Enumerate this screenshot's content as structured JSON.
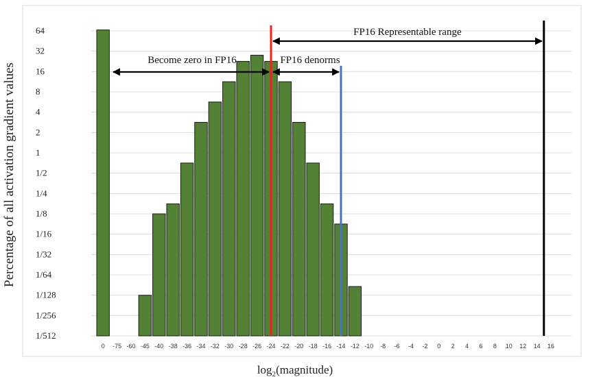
{
  "chart_data": {
    "type": "bar",
    "xlabel_base": "log",
    "xlabel_sub": "2",
    "xlabel_rest": "(magnitude)",
    "ylabel": "Percentage of all activation gradient values",
    "y_scale": "log2",
    "y_ticks": [
      "64",
      "32",
      "16",
      "8",
      "4",
      "2",
      "1",
      "1/2",
      "1/4",
      "1/8",
      "1/16",
      "1/32",
      "1/64",
      "1/128",
      "1/256",
      "1/512"
    ],
    "grid": true,
    "categories": [
      "0",
      "-75",
      "-60",
      "-45",
      "-40",
      "-38",
      "-36",
      "-34",
      "-32",
      "-30",
      "-28",
      "-26",
      "-24",
      "-22",
      "-20",
      "-18",
      "-16",
      "-14",
      "-12",
      "-10",
      "-8",
      "-6",
      "-4",
      "-2",
      "0",
      "2",
      "4",
      "6",
      "8",
      "10",
      "12",
      "14",
      "16"
    ],
    "values": [
      66,
      null,
      null,
      0.0078,
      0.125,
      0.176,
      0.707,
      2.83,
      5.66,
      11.3,
      22.6,
      27.9,
      22.6,
      11.3,
      2.83,
      0.707,
      0.176,
      0.0884,
      0.0105,
      0.000984,
      null,
      null,
      null,
      null,
      null,
      null,
      null,
      null,
      null,
      null,
      null,
      null,
      null
    ],
    "bar_color": "#538135",
    "vertical_lines": [
      {
        "x": "-24",
        "color": "#ff1a1a"
      },
      {
        "x": "-14",
        "color": "#4472c4"
      },
      {
        "x": "15",
        "color": "#000000"
      }
    ],
    "annotations": [
      {
        "text": "Become zero in FP16",
        "from": "0",
        "to": "-24"
      },
      {
        "text": "FP16 denorms",
        "from": "-24",
        "to": "-14"
      },
      {
        "text": "FP16 Representable range",
        "from": "-24",
        "to": "15"
      }
    ]
  }
}
